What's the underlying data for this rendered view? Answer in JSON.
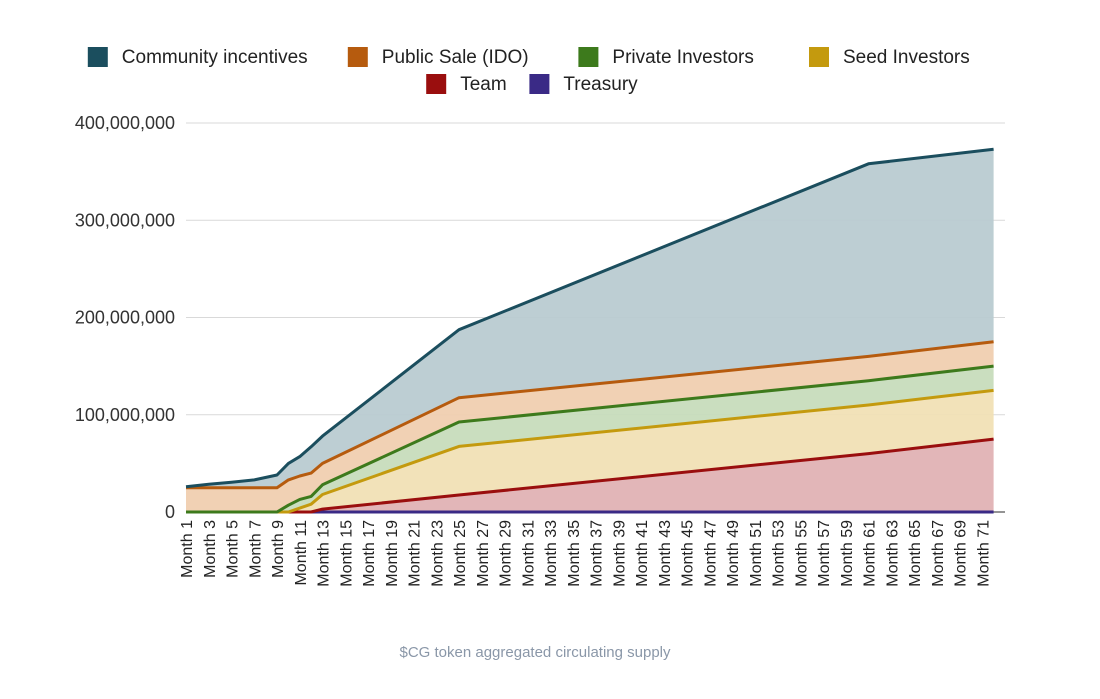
{
  "chart_data": {
    "type": "area",
    "stacked": true,
    "caption": "$CG token aggregated circulating supply",
    "ylim": [
      0,
      400000000
    ],
    "y_ticks": [
      "0",
      "100,000,000",
      "200,000,000",
      "300,000,000",
      "400,000,000"
    ],
    "y_tick_values": [
      0,
      100000000,
      200000000,
      300000000,
      400000000
    ],
    "x_labels": [
      "Month 1",
      "Month 3",
      "Month 5",
      "Month 7",
      "Month 9",
      "Month 11",
      "Month 13",
      "Month 15",
      "Month 17",
      "Month 19",
      "Month 21",
      "Month 23",
      "Month 25",
      "Month 27",
      "Month 29",
      "Month 31",
      "Month 33",
      "Month 35",
      "Month 37",
      "Month 39",
      "Month 41",
      "Month 43",
      "Month 45",
      "Month 47",
      "Month 49",
      "Month 51",
      "Month 53",
      "Month 55",
      "Month 57",
      "Month 59",
      "Month 61",
      "Month 63",
      "Month 65",
      "Month 67",
      "Month 69",
      "Month 71"
    ],
    "x_months": [
      1,
      3,
      5,
      7,
      9,
      10,
      11,
      12,
      13,
      25,
      61,
      72
    ],
    "series": [
      {
        "name": "Treasury",
        "color": "#3a2a86",
        "fill": "#c9c3e0",
        "values": [
          0,
          0,
          0,
          0,
          0,
          0,
          0,
          0,
          0,
          0,
          0,
          0
        ]
      },
      {
        "name": "Team",
        "color": "#9a0e0e",
        "fill": "#e0b2b4",
        "values": [
          0,
          0,
          0,
          0,
          0,
          0,
          0,
          0,
          3000000,
          17500000,
          60000000,
          75000000
        ]
      },
      {
        "name": "Seed Investors",
        "color": "#c49a0e",
        "fill": "#f1e0b5",
        "values": [
          0,
          0,
          0,
          0,
          0,
          0,
          4000000,
          8000000,
          15000000,
          50000000,
          50000000,
          50000000
        ]
      },
      {
        "name": "Private Investors",
        "color": "#3d7a1c",
        "fill": "#c7dcbc",
        "values": [
          0,
          0,
          0,
          0,
          0,
          7000000,
          9000000,
          8000000,
          10000000,
          25000000,
          25000000,
          25000000
        ]
      },
      {
        "name": "Public Sale (IDO)",
        "color": "#b65b0e",
        "fill": "#f0cfb0",
        "values": [
          25000000,
          25000000,
          25000000,
          25000000,
          25000000,
          26000000,
          24000000,
          24000000,
          22000000,
          25000000,
          25000000,
          25000000
        ]
      },
      {
        "name": "Community incentives",
        "color": "#1b4e5e",
        "fill": "#b9cbd1",
        "values": [
          1000000,
          3500000,
          5500000,
          8000000,
          13000000,
          17000000,
          20000000,
          27000000,
          28000000,
          70000000,
          198000000,
          198000000
        ]
      }
    ]
  },
  "legend": {
    "row1": [
      "Community incentives",
      "Public Sale (IDO)",
      "Private Investors",
      "Seed Investors"
    ],
    "row2": [
      "Team",
      "Treasury"
    ]
  }
}
